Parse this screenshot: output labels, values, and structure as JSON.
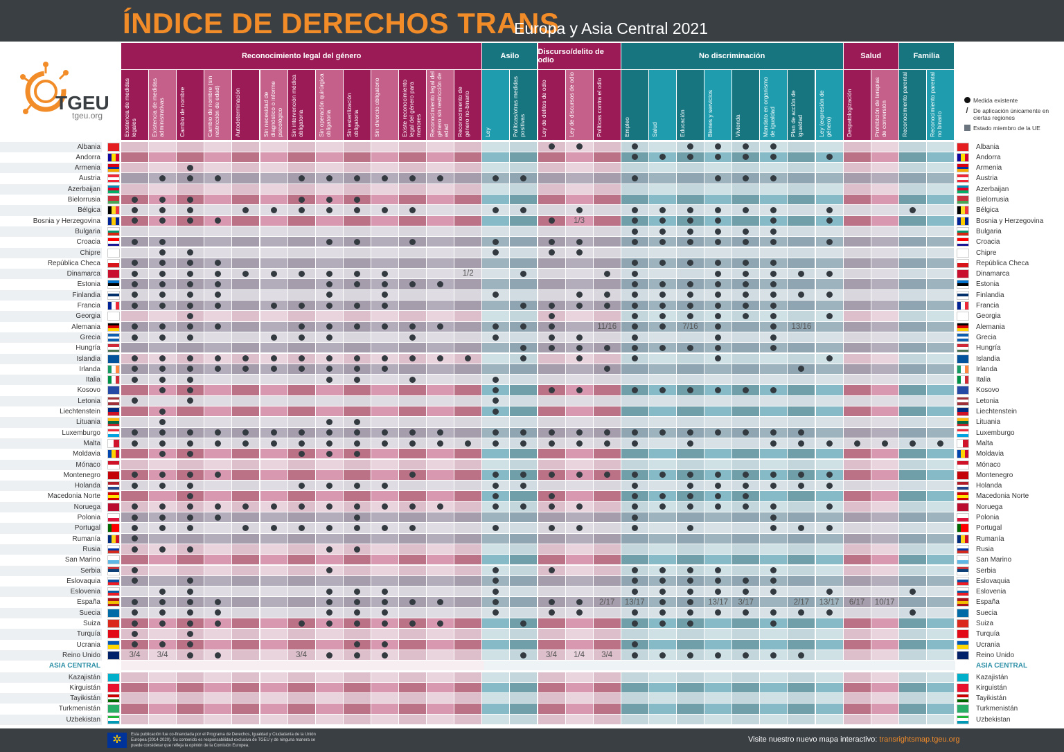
{
  "header": {
    "title": "ÍNDICE DE DERECHOS TRANS",
    "subtitle": "Europa y Asia Central 2021"
  },
  "logo": {
    "name": "TGEU",
    "url": "tgeu.org",
    "color": "#f28c28"
  },
  "colors": {
    "pink_dark": "#9b1b57",
    "pink_light": "#c4608a",
    "teal_dark": "#177580",
    "teal_light": "#1f9dae",
    "accent": "#f28c28",
    "bar": "#3a3f44"
  },
  "groups": [
    {
      "label": "Reconocimiento legal del género",
      "tone": "pink",
      "columns": [
        "Existencia de medidas legales",
        "Existencia de medidas administrativas",
        "Cambio de nombre",
        "Cambio de nombre (sin restricción de edad)",
        "Autodeterminación",
        "Sin necesidad de diagnóstico o informe psicológico",
        "Sin intervención médica obligatoria",
        "Sin operación quirúrgica obligatoria",
        "Sin esterilización obligatoria",
        "Sin divorcio obligatorio",
        "Existe reconocimiento legal del género para menores",
        "Reconocimiento legal del género sin restricción de edad",
        "Reconocimiento de género no-binario"
      ]
    },
    {
      "label": "Asilo",
      "tone": "teal",
      "columns": [
        "Ley",
        "Políticas/otras medidas positivas"
      ]
    },
    {
      "label": "Discurso/delito de odio",
      "tone": "pink",
      "columns": [
        "Ley de delitos de odio",
        "Ley de discursos de odio",
        "Políticas contra el odio"
      ]
    },
    {
      "label": "No discriminación",
      "tone": "teal",
      "columns": [
        "Empleo",
        "Salud",
        "Educación",
        "Bienes y servicios",
        "Vivienda",
        "Mandato en organismo de igualdad",
        "Plan de acción de igualdad",
        "Ley (expresión de género)"
      ]
    },
    {
      "label": "Salud",
      "tone": "pink",
      "columns": [
        "Despatologización",
        "Prohibición de terapias de conversión"
      ]
    },
    {
      "label": "Familia",
      "tone": "teal",
      "columns": [
        "Reconocimiento parental",
        "Reconocimiento parental no binario"
      ]
    }
  ],
  "legend": [
    {
      "icon": "dot",
      "label": "Medida existente"
    },
    {
      "icon": "slash",
      "label": "De aplicación únicamente en ciertas regiones"
    },
    {
      "icon": "square",
      "label": "Estado miembro de la UE"
    }
  ],
  "europe": [
    {
      "name": "Albania",
      "eu": false,
      "flag": "s|#e41e20",
      "cells": "............. .. xx. x.xxxx.. .. .."
    },
    {
      "name": "Andorra",
      "eu": false,
      "flag": "v|#10069f|#fedd00|#d50032",
      "cells": "............. .. ... xxxxxx.x .. .."
    },
    {
      "name": "Armenia",
      "eu": false,
      "flag": "h|#d90012|#0033a0|#f2a800",
      "cells": "..x.......... .. ... ........ .. .."
    },
    {
      "name": "Austria",
      "eu": true,
      "flag": "h|#ed2939|#ffffff|#ed2939",
      "cells": ".xxx..xxxxxx. xx ... x..xxx.. .. .."
    },
    {
      "name": "Azerbaijan",
      "eu": false,
      "flag": "h|#0092bc|#e4002b|#00af66",
      "cells": "............. .. ... ........ .. .."
    },
    {
      "name": "Bielorrusia",
      "eu": false,
      "flag": "h|#c8313e|#c8313e|#4aa657",
      "cells": "xxx...xxx.... .. ... ........ .. .."
    },
    {
      "name": "Bélgica",
      "eu": true,
      "flag": "v|#000000|#fdda24|#ef3340",
      "cells": "xxx.xxxxxxx.. xx .x. xxxxxx.x .. x."
    },
    {
      "name": "Bosnia y Herzegovina",
      "eu": false,
      "flag": "v|#002395|#fecb00|#002395",
      "cells": "xxxx......... .. x*. xxxx.x.x .. ..",
      "fractions": {
        "16": "1/3"
      }
    },
    {
      "name": "Bulgaria",
      "eu": true,
      "flag": "h|#ffffff|#00966e|#d62612",
      "cells": "............. .. ... xxxxxx.. .. .."
    },
    {
      "name": "Croacia",
      "eu": true,
      "flag": "h|#ff0000|#ffffff|#171796",
      "cells": "xx.....xx.x.. x. xx. xxxxxx.x .. .."
    },
    {
      "name": "Chipre",
      "eu": true,
      "flag": "s|#ffffff",
      "cells": ".xx.......... x. xx. ........ .. .."
    },
    {
      "name": "República Checa",
      "eu": true,
      "flag": "h|#ffffff|#d7141a",
      "cells": "xxxx......... .. ... xxxxxx.. .. .."
    },
    {
      "name": "Dinamarca",
      "eu": true,
      "flag": "s|#c8102e",
      "cells": "xxxxxxxxxx..* .x ..x x..xxxxx .. ..",
      "fractions": {
        "12": "1/2"
      }
    },
    {
      "name": "Estonia",
      "eu": true,
      "flag": "h|#0072ce|#000000|#ffffff",
      "cells": "xxxx...xxxxx. .. ... xxxxxx.. .. .."
    },
    {
      "name": "Finlandia",
      "eu": true,
      "flag": "h|#ffffff|#002f6c|#ffffff",
      "cells": "xxxx...x.x... x. .xx xxxxxxxx .. .."
    },
    {
      "name": "Francia",
      "eu": true,
      "flag": "v|#002395|#ffffff|#ed2939",
      "cells": "xxxx.xxxxx... .x xxx xxxxxx.. .. .."
    },
    {
      "name": "Georgia",
      "eu": false,
      "flag": "s|#ffffff",
      "cells": "..x.......... .. x.. xxxxxx.x .. .."
    },
    {
      "name": "Alemania",
      "eu": true,
      "flag": "h|#000000|#dd0000|#ffce00",
      "cells": "xxxx..xxxxxx. xx x.* xx*x.x*. .. ..",
      "fractions": {
        "17": "11/16",
        "20": "7/16",
        "24": "13/16"
      }
    },
    {
      "name": "Grecia",
      "eu": true,
      "flag": "h|#0d5eaf|#ffffff|#0d5eaf",
      "cells": "xxx..xxx..x.. x. xx. x..x.x.. .. .."
    },
    {
      "name": "Hungría",
      "eu": true,
      "flag": "h|#ce2939|#ffffff|#477050",
      "cells": "............. .x xxx xxxx.x.. .. .."
    },
    {
      "name": "Islandia",
      "eu": false,
      "flag": "s|#02529c",
      "cells": "xxxxxxxxxxxxx .x .x. x..x...x .. .."
    },
    {
      "name": "Irlanda",
      "eu": true,
      "flag": "v|#169b62|#ffffff|#ff883e",
      "cells": "xxxxxxxxxx... .. ..x ......x. .. .."
    },
    {
      "name": "Italia",
      "eu": true,
      "flag": "v|#009246|#ffffff|#ce2b37",
      "cells": "xxx....xx.x.. x. ... ........ .. .."
    },
    {
      "name": "Kosovo",
      "eu": false,
      "flag": "s|#244aa5",
      "cells": ".xx.......... x. xx. xxxxxx.. .. .."
    },
    {
      "name": "Letonia",
      "eu": true,
      "flag": "h|#9e3039|#ffffff|#9e3039",
      "cells": "x.x.......... x. ... ........ .. .."
    },
    {
      "name": "Liechtenstein",
      "eu": false,
      "flag": "h|#002b7f|#ce1126",
      "cells": ".x........... x. ... ........ .. .."
    },
    {
      "name": "Lituania",
      "eu": true,
      "flag": "h|#fdb913|#006a44|#c1272d",
      "cells": ".x.....xx.... .. ... ........ .. .."
    },
    {
      "name": "Luxemburgo",
      "eu": true,
      "flag": "h|#ed2939|#ffffff|#00a1de",
      "cells": "xxxxxxxxxxxx. xx xxx xxxxxxx. .. .."
    },
    {
      "name": "Malta",
      "eu": true,
      "flag": "v|#ffffff|#cf142b",
      "cells": "xxxxxxxxxxxxx xx xxx x.x..xxx xx xx"
    },
    {
      "name": "Moldavia",
      "eu": false,
      "flag": "v|#0046ae|#ffd200|#cc092f",
      "cells": ".xx...xxx.... .. ... ........ .. .."
    },
    {
      "name": "Mónaco",
      "eu": false,
      "flag": "h|#ce1126|#ffffff",
      "cells": "............. .. ... ........ .. .."
    },
    {
      "name": "Montenegro",
      "eu": false,
      "flag": "s|#c40308",
      "cells": "xxxx......x.. xx xxx xxxxxxxx .. .."
    },
    {
      "name": "Holanda",
      "eu": true,
      "flag": "h|#ae1c28|#ffffff|#21468b",
      "cells": "xxx...xxxx... xx ... x.xxxxxx .. .."
    },
    {
      "name": "Macedonia Norte",
      "eu": false,
      "flag": "h|#d20000|#ffe600|#d20000",
      "cells": "..x.......... x. x.. xxxxx... .. .."
    },
    {
      "name": "Noruega",
      "eu": false,
      "flag": "s|#ba0c2f",
      "cells": "xxxxxxxxxxxx. xx xx. xxxxxx.x .. .."
    },
    {
      "name": "Polonia",
      "eu": true,
      "flag": "h|#ffffff|#dc143c",
      "cells": "xxxx....x.... .. ... x....x.. .. .."
    },
    {
      "name": "Portugal",
      "eu": true,
      "flag": "v|#006600|#ff0000|#ff0000",
      "cells": "xxx.xxxxxxx.. x. xx. x.x..xxx .. .."
    },
    {
      "name": "Rumanía",
      "eu": true,
      "flag": "v|#002b7f|#fcd116|#ce1126",
      "cells": "x............ .. ... ........ .. .."
    },
    {
      "name": "Rusia",
      "eu": false,
      "flag": "h|#ffffff|#0039a6|#d52b1e",
      "cells": "xxx....xx.... .. ... ........ .. .."
    },
    {
      "name": "San Marino",
      "eu": false,
      "flag": "h|#ffffff|#5eb6e4",
      "cells": "............. .. ... ........ .. .."
    },
    {
      "name": "Serbia",
      "eu": false,
      "flag": "h|#c6363c|#0c4076|#ffffff",
      "cells": "x......x..... x. x.. xxxx.x.. .. .."
    },
    {
      "name": "Eslovaquia",
      "eu": true,
      "flag": "h|#ffffff|#0b4ea2|#ee1c25",
      "cells": "x.x.......... x. ... xxxxxx.. .. .."
    },
    {
      "name": "Eslovenia",
      "eu": true,
      "flag": "h|#ffffff|#005da4|#ed1c24",
      "cells": ".xx....xxx... x. ... xxxxxx.x .. x."
    },
    {
      "name": "España",
      "eu": true,
      "flag": "h|#aa151b|#f1bf00|#aa151b",
      "cells": "xxxx...xxxxx. x. xx* *xx**.** ** ..",
      "fractions": {
        "17": "2/17",
        "18": "13/17",
        "21": "13/17",
        "22": "3/17",
        "24": "2/17",
        "25": "13/17",
        "26": "6/17",
        "27": "10/17"
      }
    },
    {
      "name": "Suecia",
      "eu": true,
      "flag": "s|#006aa7",
      "cells": "xxxx...xxx... x. xx. xxxxxxxx .. x."
    },
    {
      "name": "Suiza",
      "eu": false,
      "flag": "s|#da291c",
      "cells": "xxxx..xxxxxx. .x ... xxx..x.. .. .."
    },
    {
      "name": "Turquía",
      "eu": false,
      "flag": "s|#e30a17",
      "cells": "x.x.......... .. ... ........ .. .."
    },
    {
      "name": "Ucrania",
      "eu": false,
      "flag": "h|#0057b7|#ffd700",
      "cells": "xxx.....xx... .. ... x....... .. .."
    },
    {
      "name": "Reino Unido",
      "eu": false,
      "flag": "s|#012169",
      "cells": "**xx..*xxx... .x *** xxxxxxx. .. ..",
      "fractions": {
        "0": "3/4",
        "1": "3/4",
        "6": "3/4",
        "15": "3/4",
        "16": "1/4",
        "17": "3/4"
      }
    }
  ],
  "asia_header": "ASIA CENTRAL",
  "asia": [
    {
      "name": "Kazajistán",
      "eu": false,
      "flag": "s|#00afca",
      "cells": "............. .. ... ........ .. .."
    },
    {
      "name": "Kirguistán",
      "eu": false,
      "flag": "s|#e8112d",
      "cells": "............. .. ... ........ .. .."
    },
    {
      "name": "Tayikistán",
      "eu": false,
      "flag": "h|#cc0000|#ffffff|#006600",
      "cells": "............. .. ... ........ .. .."
    },
    {
      "name": "Turkmenistán",
      "eu": false,
      "flag": "s|#28ae66",
      "cells": "............. .. ... ........ .. .."
    },
    {
      "name": "Uzbekistan",
      "eu": false,
      "flag": "h|#1eb53a|#ffffff|#0099b5",
      "cells": "............. .. ... ........ .. .."
    }
  ],
  "footer": {
    "note": "Esta publicación fue co-financiada por el Programa de Derechos, Igualdad y Ciudadanía de la Unión Europea (2014-2020). Su contenido es responsabilidad exclusiva de TGEU y de ninguna manera se puede considerar que refleja la opinión de la Comisión Europea.",
    "visit": "Visite nuestro nuevo mapa interactivo: ",
    "link": "transrightsmap.tgeu.org"
  }
}
